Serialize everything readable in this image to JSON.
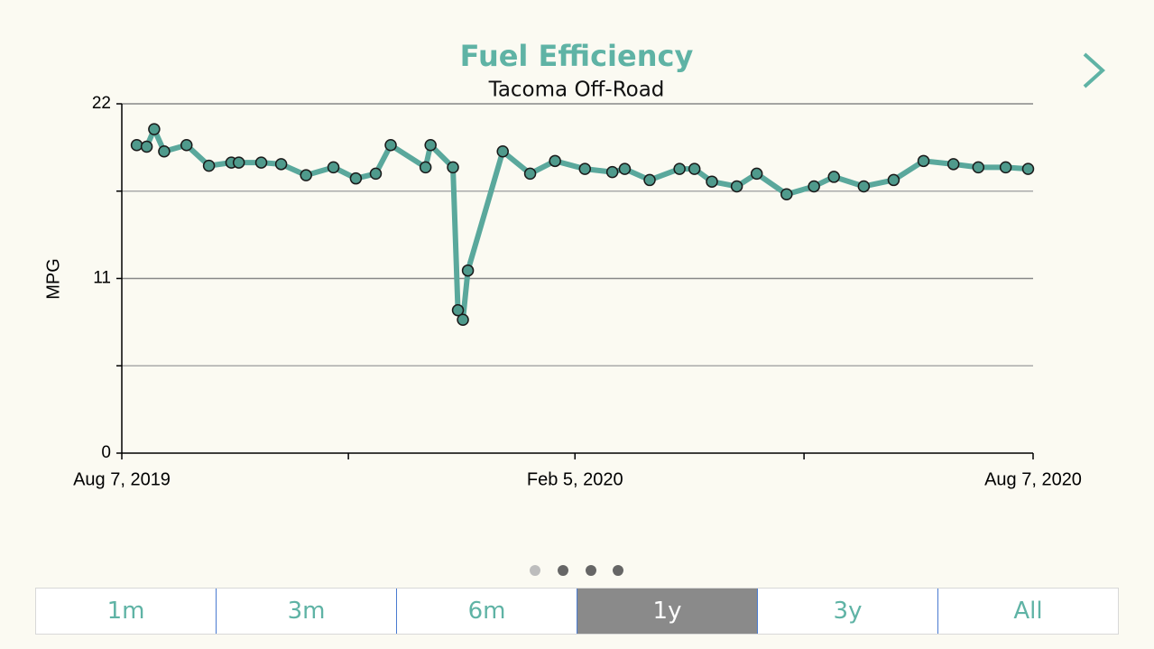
{
  "chart_data": {
    "type": "line",
    "title": "Fuel Efficiency",
    "subtitle": "Tacoma Off-Road",
    "y_label": "MPG",
    "x": [
      "2019-08-13",
      "2019-08-17",
      "2019-08-20",
      "2019-08-24",
      "2019-09-02",
      "2019-09-11",
      "2019-09-20",
      "2019-09-23",
      "2019-10-02",
      "2019-10-10",
      "2019-10-20",
      "2019-10-31",
      "2019-11-09",
      "2019-11-17",
      "2019-11-23",
      "2019-12-07",
      "2019-12-09",
      "2019-12-18",
      "2019-12-20",
      "2019-12-22",
      "2019-12-24",
      "2020-01-07",
      "2020-01-18",
      "2020-01-28",
      "2020-02-09",
      "2020-02-20",
      "2020-02-25",
      "2020-03-06",
      "2020-03-18",
      "2020-03-24",
      "2020-03-31",
      "2020-04-10",
      "2020-04-18",
      "2020-04-30",
      "2020-05-11",
      "2020-05-19",
      "2020-05-31",
      "2020-06-12",
      "2020-06-24",
      "2020-07-06",
      "2020-07-16",
      "2020-07-27",
      "2020-08-05"
    ],
    "series": [
      {
        "name": "MPG",
        "color": "#5aa89c",
        "marker_color": "#4f9a8c",
        "values": [
          19.4,
          19.3,
          20.4,
          19.0,
          19.4,
          18.1,
          18.3,
          18.3,
          18.3,
          18.2,
          17.5,
          18.0,
          17.3,
          17.6,
          19.4,
          18.0,
          19.4,
          18.0,
          9.0,
          8.4,
          11.5,
          19.0,
          17.6,
          18.4,
          17.9,
          17.7,
          17.9,
          17.2,
          17.9,
          17.9,
          17.1,
          16.8,
          17.6,
          16.3,
          16.8,
          17.4,
          16.8,
          17.2,
          18.4,
          18.2,
          18.0,
          18.0,
          17.9
        ]
      }
    ],
    "xlim": [
      "2019-08-07",
      "2020-08-07"
    ],
    "xticks": [
      {
        "value": "2019-08-07",
        "label": "Aug 7, 2019"
      },
      {
        "value": "2020-02-05",
        "label": "Feb 5, 2020"
      },
      {
        "value": "2020-08-07",
        "label": "Aug 7, 2020"
      }
    ],
    "minor_xticks": [
      "2019-11-06",
      "2020-05-07"
    ],
    "ylim": [
      0,
      22
    ],
    "yticks": [
      0,
      11,
      22
    ],
    "minor_yticks": [
      5.5,
      16.5
    ],
    "grid": true
  },
  "range_buttons": {
    "options": [
      "1m",
      "3m",
      "6m",
      "1y",
      "3y",
      "All"
    ],
    "selected": 3
  }
}
